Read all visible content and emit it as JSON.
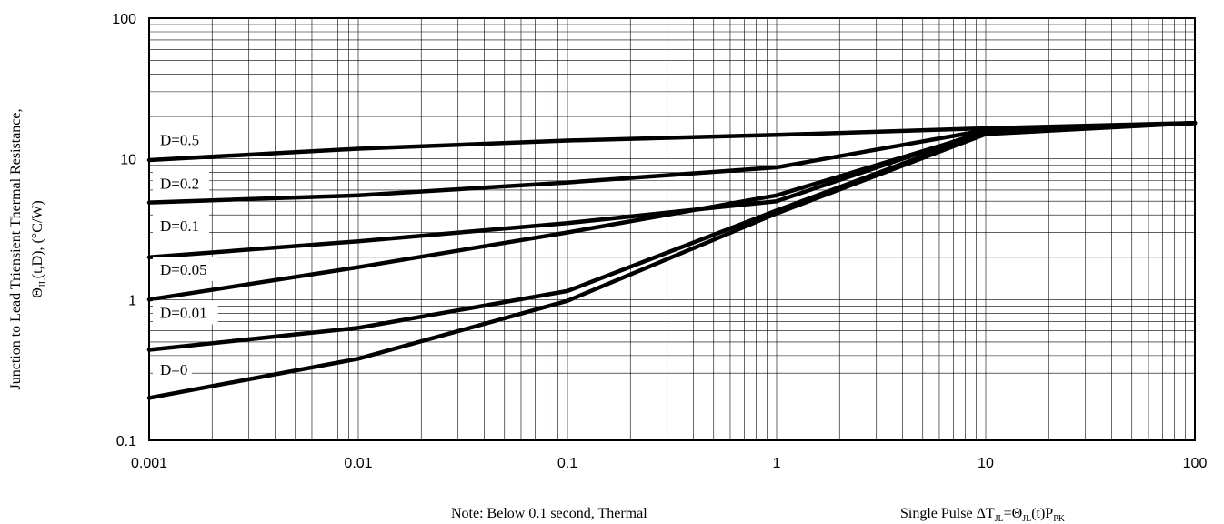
{
  "chart_data": {
    "type": "line",
    "xscale": "log",
    "yscale": "log",
    "xlim": [
      0.001,
      100
    ],
    "ylim": [
      0.1,
      100
    ],
    "grid": true,
    "x_ticks": [
      "0.001",
      "0.01",
      "0.1",
      "1",
      "10",
      "100"
    ],
    "y_ticks": [
      "0.1",
      "1",
      "10",
      "100"
    ],
    "ylabel_line1": "Junction to Lead Triensient Thermal Resistance,",
    "ylabel_line2": "Θ",
    "ylabel_line2_sub": "JL",
    "ylabel_line2_rest": "(t,D), (°C/W)",
    "note": "Note: Below 0.1 second, Thermal",
    "formula_prefix": "Single Pulse ΔT",
    "formula_sub1": "JL",
    "formula_mid": "=Θ",
    "formula_sub2": "JL",
    "formula_mid2": "(t)P",
    "formula_sub3": "PK",
    "series": [
      {
        "name": "D=0.5",
        "x": [
          0.001,
          0.01,
          0.1,
          1,
          10,
          100
        ],
        "y": [
          9.8,
          11.8,
          13.5,
          14.8,
          16.5,
          18.0
        ]
      },
      {
        "name": "D=0.2",
        "x": [
          0.001,
          0.01,
          0.1,
          1,
          10,
          100
        ],
        "y": [
          4.9,
          5.5,
          6.8,
          8.7,
          16.0,
          18.0
        ]
      },
      {
        "name": "D=0.1",
        "x": [
          0.001,
          0.01,
          0.1,
          1,
          10,
          100
        ],
        "y": [
          2.0,
          2.6,
          3.5,
          5.0,
          15.8,
          18.0
        ]
      },
      {
        "name": "D=0.05",
        "x": [
          0.001,
          0.01,
          0.1,
          1,
          10,
          100
        ],
        "y": [
          1.0,
          1.7,
          3.0,
          5.5,
          15.5,
          18.0
        ]
      },
      {
        "name": "D=0.01",
        "x": [
          0.001,
          0.01,
          0.1,
          1,
          10,
          100
        ],
        "y": [
          0.44,
          0.63,
          1.15,
          4.3,
          15.3,
          18.0
        ]
      },
      {
        "name": "D=0",
        "x": [
          0.001,
          0.01,
          0.1,
          1,
          10,
          100
        ],
        "y": [
          0.2,
          0.38,
          0.98,
          4.1,
          15.0,
          18.0
        ]
      }
    ]
  }
}
